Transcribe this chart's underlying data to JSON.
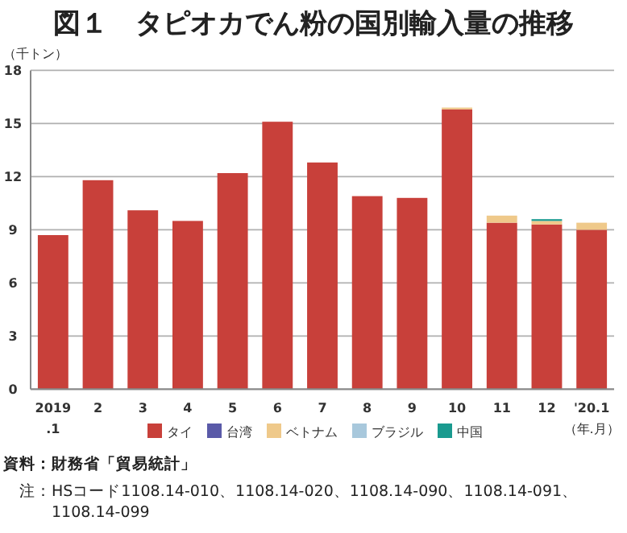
{
  "chart_data": {
    "type": "bar",
    "stacked": true,
    "title": "図１　タピオカでん粉の国別輸入量の推移",
    "ylabel": "（千トン）",
    "xlabel": "（年.月）",
    "categories": [
      "2019\n.1",
      "2",
      "3",
      "4",
      "5",
      "6",
      "7",
      "8",
      "9",
      "10",
      "11",
      "12",
      "'20.1"
    ],
    "series": [
      {
        "name": "タイ",
        "color": "#c8403a",
        "values": [
          8.7,
          11.8,
          10.1,
          9.5,
          12.2,
          15.1,
          12.8,
          10.9,
          10.8,
          15.8,
          9.4,
          9.3,
          9.0
        ]
      },
      {
        "name": "台湾",
        "color": "#5a5aa8",
        "values": [
          null,
          null,
          null,
          null,
          null,
          null,
          null,
          null,
          null,
          null,
          null,
          null,
          null
        ]
      },
      {
        "name": "ベトナム",
        "color": "#efc98a",
        "values": [
          null,
          null,
          null,
          null,
          null,
          null,
          null,
          null,
          null,
          0.1,
          0.4,
          0.2,
          0.4
        ]
      },
      {
        "name": "ブラジル",
        "color": "#a8c8dc",
        "values": [
          null,
          null,
          null,
          null,
          null,
          null,
          null,
          null,
          null,
          null,
          null,
          null,
          null
        ]
      },
      {
        "name": "中国",
        "color": "#1a9a8f",
        "values": [
          null,
          null,
          null,
          null,
          null,
          null,
          null,
          null,
          null,
          null,
          null,
          0.1,
          null
        ]
      }
    ],
    "ylim": [
      0,
      18
    ],
    "yticks": [
      0,
      3,
      6,
      9,
      12,
      15,
      18
    ],
    "grid": "y",
    "legend": "bottom",
    "annotations": [
      "資料：財務省「貿易統計」",
      "注：HSコード1108.14-010、1108.14-020、1108.14-090、1108.14-091、1108.14-099"
    ]
  }
}
